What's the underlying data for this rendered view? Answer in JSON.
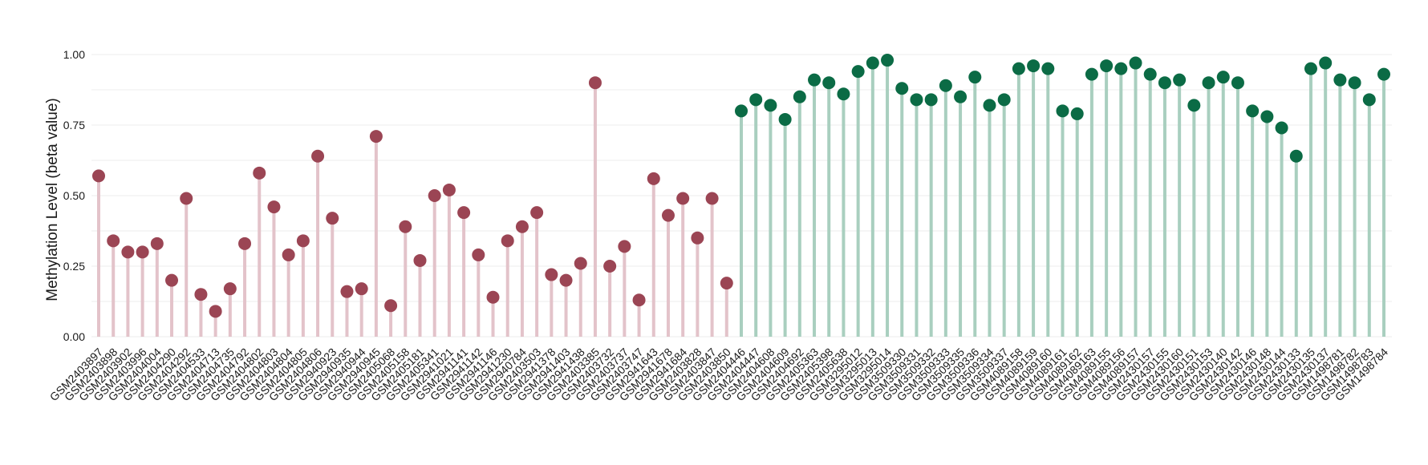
{
  "chart_data": {
    "type": "lollipop",
    "title": "",
    "xlabel": "",
    "ylabel": "Methylation Level (beta value)",
    "ylim": [
      0,
      1.0
    ],
    "y_ticks": [
      "0.00",
      "0.25",
      "0.50",
      "0.75",
      "1.00"
    ],
    "y_tick_values": [
      0,
      0.25,
      0.5,
      0.75,
      1.0
    ],
    "grid": true,
    "colors": {
      "group1_dot": "#9b4554",
      "group1_stem": "#e3c3ca",
      "group2_dot": "#0b6b45",
      "group2_stem": "#a9cfbf",
      "grid": "#ececec"
    },
    "groups": [
      {
        "color_key": "group1",
        "categories": [
          "GSM2403897",
          "GSM2403898",
          "GSM2403902",
          "GSM2403996",
          "GSM2404004",
          "GSM2404290",
          "GSM2404292",
          "GSM2404533",
          "GSM2404713",
          "GSM2404735",
          "GSM2404792",
          "GSM2404802",
          "GSM2404803",
          "GSM2404804",
          "GSM2404805",
          "GSM2404806",
          "GSM2940923",
          "GSM2940935",
          "GSM2940944",
          "GSM2940945",
          "GSM2405068",
          "GSM2405158",
          "GSM2405181",
          "GSM2405341",
          "GSM2941021",
          "GSM2941141",
          "GSM2941142",
          "GSM2941146",
          "GSM2941230",
          "GSM2940784",
          "GSM2403503",
          "GSM2941378",
          "GSM2941403",
          "GSM2941438",
          "GSM2403385",
          "GSM2403732",
          "GSM2403737",
          "GSM2403747",
          "GSM2941643",
          "GSM2941678",
          "GSM2941684",
          "GSM2403828",
          "GSM2403847",
          "GSM2403850"
        ],
        "values": [
          0.57,
          0.34,
          0.3,
          0.3,
          0.33,
          0.2,
          0.49,
          0.15,
          0.09,
          0.17,
          0.33,
          0.58,
          0.46,
          0.29,
          0.34,
          0.64,
          0.42,
          0.16,
          0.17,
          0.71,
          0.11,
          0.39,
          0.27,
          0.5,
          0.52,
          0.44,
          0.29,
          0.14,
          0.34,
          0.39,
          0.44,
          0.22,
          0.2,
          0.26,
          0.9,
          0.25,
          0.32,
          0.13,
          0.56,
          0.43,
          0.49,
          0.35,
          0.49,
          0.19
        ]
      },
      {
        "color_key": "group2",
        "categories": [
          "GSM2404446",
          "GSM2404447",
          "GSM2404608",
          "GSM2404609",
          "GSM2404692",
          "GSM2405363",
          "GSM2405398",
          "GSM2405638",
          "GSM3295012",
          "GSM3295013",
          "GSM3295014",
          "GSM3509330",
          "GSM3509331",
          "GSM3509332",
          "GSM3509333",
          "GSM3509335",
          "GSM3509336",
          "GSM3509334",
          "GSM3509337",
          "GSM4089158",
          "GSM4089159",
          "GSM4089160",
          "GSM4089161",
          "GSM4089162",
          "GSM4089163",
          "GSM4089155",
          "GSM4089156",
          "GSM4089157",
          "GSM2430157",
          "GSM2430155",
          "GSM2430160",
          "GSM2430151",
          "GSM2430153",
          "GSM2430140",
          "GSM2430142",
          "GSM2430146",
          "GSM2430148",
          "GSM2430144",
          "GSM2430133",
          "GSM2430135",
          "GSM2430137",
          "GSM1498781",
          "GSM1498782",
          "GSM1498783",
          "GSM1498784"
        ],
        "values": [
          0.8,
          0.84,
          0.82,
          0.77,
          0.85,
          0.91,
          0.9,
          0.86,
          0.94,
          0.97,
          0.98,
          0.88,
          0.84,
          0.84,
          0.89,
          0.85,
          0.92,
          0.82,
          0.84,
          0.95,
          0.96,
          0.95,
          0.8,
          0.79,
          0.93,
          0.96,
          0.95,
          0.97,
          0.93,
          0.9,
          0.91,
          0.82,
          0.9,
          0.92,
          0.9,
          0.8,
          0.78,
          0.74,
          0.64,
          0.95,
          0.97,
          0.91,
          0.9,
          0.84,
          0.93
        ]
      }
    ]
  }
}
